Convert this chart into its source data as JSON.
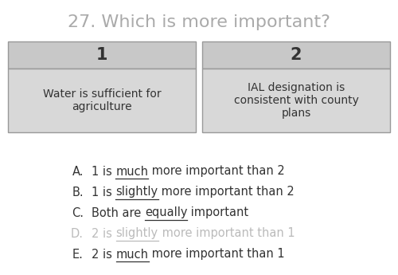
{
  "title": "27. Which is more important?",
  "title_color": "#aaaaaa",
  "title_fontsize": 16,
  "box1_label": "1",
  "box2_label": "2",
  "box1_text": "Water is sufficient for\nagriculture",
  "box2_text": "IAL designation is\nconsistent with county\nplans",
  "box_header_bg": "#c8c8c8",
  "box_body_bg": "#d8d8d8",
  "box_border_color": "#999999",
  "options": [
    {
      "letter": "A.",
      "pre": "1 is ",
      "key": "much",
      "post": " more important than 2",
      "color": "#333333"
    },
    {
      "letter": "B.",
      "pre": "1 is ",
      "key": "slightly",
      "post": " more important than 2",
      "color": "#333333"
    },
    {
      "letter": "C.",
      "pre": "Both are ",
      "key": "equally",
      "post": " important",
      "color": "#333333"
    },
    {
      "letter": "D.",
      "pre": "2 is ",
      "key": "slightly",
      "post": " more important than 1",
      "color": "#bbbbbb"
    },
    {
      "letter": "E.",
      "pre": "2 is ",
      "key": "much",
      "post": " more important than 1",
      "color": "#333333"
    }
  ],
  "option_fontsize": 10.5,
  "bg_color": "#ffffff",
  "fig_width": 5.0,
  "fig_height": 3.45,
  "dpi": 100
}
